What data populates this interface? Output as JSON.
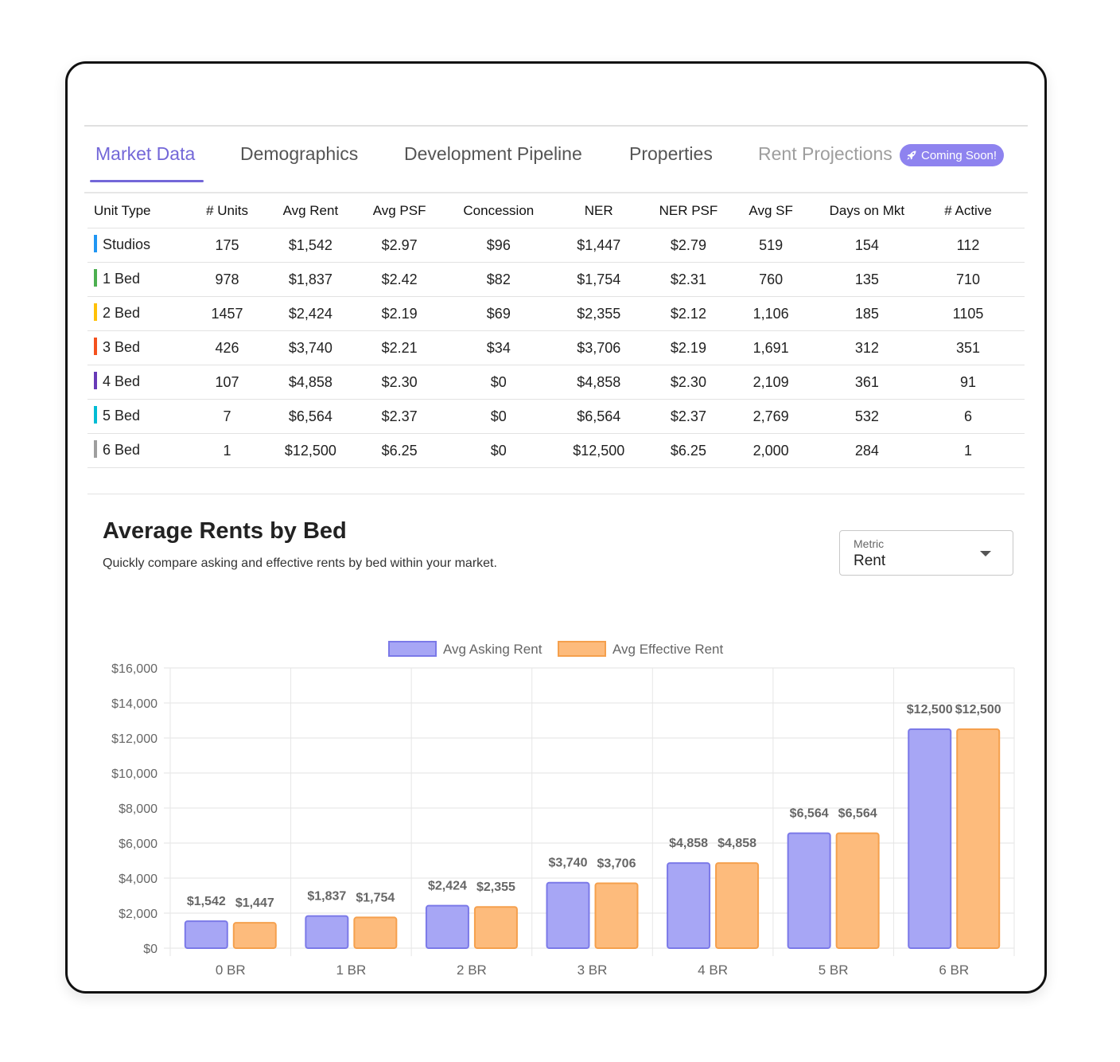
{
  "tabs": [
    {
      "label": "Market Data",
      "state": "active"
    },
    {
      "label": "Demographics",
      "state": "normal"
    },
    {
      "label": "Development Pipeline",
      "state": "normal"
    },
    {
      "label": "Properties",
      "state": "normal"
    },
    {
      "label": "Rent Projections",
      "state": "disabled"
    }
  ],
  "badge": {
    "label": "Coming Soon!",
    "icon": "rocket-icon",
    "color": "#8e83ef"
  },
  "accent_color": "#7367d8",
  "table": {
    "headers": [
      "Unit Type",
      "# Units",
      "Avg Rent",
      "Avg PSF",
      "Concession",
      "NER",
      "NER PSF",
      "Avg SF",
      "Days on Mkt",
      "# Active"
    ],
    "rows": [
      {
        "color": "#2196f3",
        "cells": [
          "Studios",
          "175",
          "$1,542",
          "$2.97",
          "$96",
          "$1,447",
          "$2.79",
          "519",
          "154",
          "112"
        ]
      },
      {
        "color": "#4caf50",
        "cells": [
          "1 Bed",
          "978",
          "$1,837",
          "$2.42",
          "$82",
          "$1,754",
          "$2.31",
          "760",
          "135",
          "710"
        ]
      },
      {
        "color": "#ffc107",
        "cells": [
          "2 Bed",
          "1457",
          "$2,424",
          "$2.19",
          "$69",
          "$2,355",
          "$2.12",
          "1,106",
          "185",
          "1105"
        ]
      },
      {
        "color": "#f4511e",
        "cells": [
          "3 Bed",
          "426",
          "$3,740",
          "$2.21",
          "$34",
          "$3,706",
          "$2.19",
          "1,691",
          "312",
          "351"
        ]
      },
      {
        "color": "#673ab7",
        "cells": [
          "4 Bed",
          "107",
          "$4,858",
          "$2.30",
          "$0",
          "$4,858",
          "$2.30",
          "2,109",
          "361",
          "91"
        ]
      },
      {
        "color": "#00bcd4",
        "cells": [
          "5 Bed",
          "7",
          "$6,564",
          "$2.37",
          "$0",
          "$6,564",
          "$2.37",
          "2,769",
          "532",
          "6"
        ]
      },
      {
        "color": "#9e9e9e",
        "cells": [
          "6 Bed",
          "1",
          "$12,500",
          "$6.25",
          "$0",
          "$12,500",
          "$6.25",
          "2,000",
          "284",
          "1"
        ]
      }
    ]
  },
  "chart_section": {
    "title": "Average Rents by Bed",
    "subtitle": "Quickly compare asking and effective rents by bed within your market.",
    "metric_label": "Metric",
    "metric_value": "Rent"
  },
  "chart_data": {
    "type": "bar",
    "categories": [
      "0 BR",
      "1 BR",
      "2 BR",
      "3 BR",
      "4 BR",
      "5 BR",
      "6 BR"
    ],
    "series": [
      {
        "name": "Avg Asking Rent",
        "values": [
          1542,
          1837,
          2424,
          3740,
          4858,
          6564,
          12500
        ],
        "labels": [
          "$1,542",
          "$1,837",
          "$2,424",
          "$3,740",
          "$4,858",
          "$6,564",
          "$12,500"
        ],
        "fill": "#a7a6f5",
        "stroke": "#7b79e8"
      },
      {
        "name": "Avg Effective Rent",
        "values": [
          1447,
          1754,
          2355,
          3706,
          4858,
          6564,
          12500
        ],
        "labels": [
          "$1,447",
          "$1,754",
          "$2,355",
          "$3,706",
          "$4,858",
          "$6,564",
          "$12,500"
        ],
        "fill": "#fdbb7c",
        "stroke": "#f5a04d"
      }
    ],
    "yticks": [
      "$0",
      "$2,000",
      "$4,000",
      "$6,000",
      "$8,000",
      "$10,000",
      "$12,000",
      "$14,000",
      "$16,000"
    ],
    "ylim": [
      0,
      16000
    ],
    "grid": true,
    "legend": "top-center",
    "xlabel": "",
    "ylabel": ""
  }
}
